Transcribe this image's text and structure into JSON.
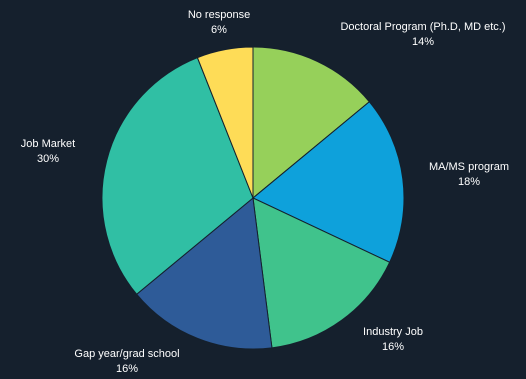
{
  "chart_data": {
    "type": "pie",
    "slices": [
      {
        "label": "Doctoral Program (Ph.D, MD etc.)",
        "value": 14,
        "value_text": "14%",
        "color": "#96d05a"
      },
      {
        "label": "MA/MS program",
        "value": 18,
        "value_text": "18%",
        "color": "#0ea1db"
      },
      {
        "label": "Industry Job",
        "value": 16,
        "value_text": "16%",
        "color": "#40c38c"
      },
      {
        "label": "Gap year/grad school",
        "value": 16,
        "value_text": "16%",
        "color": "#2e5b98"
      },
      {
        "label": "Job Market",
        "value": 30,
        "value_text": "30%",
        "color": "#30bfa4"
      },
      {
        "label": "No response",
        "value": 6,
        "value_text": "6%",
        "color": "#fedc57"
      }
    ],
    "start_angle": "12 o'clock",
    "direction": "clockwise",
    "legend": "none"
  }
}
